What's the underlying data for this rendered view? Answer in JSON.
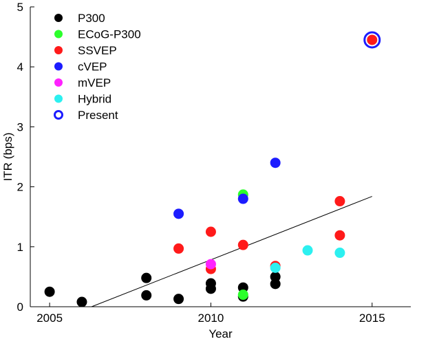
{
  "chart_data": {
    "type": "scatter",
    "xlabel": "Year",
    "ylabel": "ITR (bps)",
    "xlim": [
      2004.4,
      2016.2
    ],
    "ylim": [
      0,
      5
    ],
    "xticks": [
      2005,
      2010,
      2015
    ],
    "yticks": [
      0,
      1,
      2,
      3,
      4,
      5
    ],
    "legend_position": "top-left",
    "series": [
      {
        "name": "P300",
        "color": "#000000",
        "points": [
          [
            2005,
            0.25
          ],
          [
            2006,
            0.08
          ],
          [
            2008,
            0.48
          ],
          [
            2008,
            0.19
          ],
          [
            2009,
            0.13
          ],
          [
            2010,
            0.39
          ],
          [
            2010,
            0.3
          ],
          [
            2011,
            0.32
          ],
          [
            2011,
            0.17
          ],
          [
            2012,
            0.5
          ],
          [
            2012,
            0.38
          ]
        ]
      },
      {
        "name": "ECoG-P300",
        "color": "#2cff2c",
        "points": [
          [
            2011,
            1.87
          ],
          [
            2011,
            0.2
          ]
        ]
      },
      {
        "name": "SSVEP",
        "color": "#ff1a1a",
        "points": [
          [
            2009,
            0.97
          ],
          [
            2010,
            1.25
          ],
          [
            2010,
            0.63
          ],
          [
            2011,
            1.03
          ],
          [
            2012,
            0.68
          ],
          [
            2014,
            1.76
          ],
          [
            2014,
            1.19
          ],
          [
            2015,
            4.45
          ]
        ]
      },
      {
        "name": "cVEP",
        "color": "#1c1cff",
        "points": [
          [
            2009,
            1.55
          ],
          [
            2011,
            1.8
          ],
          [
            2012,
            2.4
          ]
        ]
      },
      {
        "name": "mVEP",
        "color": "#ff22ff",
        "points": [
          [
            2010,
            0.71
          ]
        ]
      },
      {
        "name": "Hybrid",
        "color": "#2cf0f0",
        "points": [
          [
            2012,
            0.65
          ],
          [
            2013,
            0.94
          ],
          [
            2014,
            0.9
          ]
        ]
      },
      {
        "name": "Present",
        "color": "#1c1cff",
        "marker": "ring",
        "points": [
          [
            2015,
            4.45
          ]
        ]
      }
    ],
    "trendline": {
      "x": [
        2006.3,
        2015
      ],
      "y": [
        0.0,
        1.84
      ]
    }
  }
}
